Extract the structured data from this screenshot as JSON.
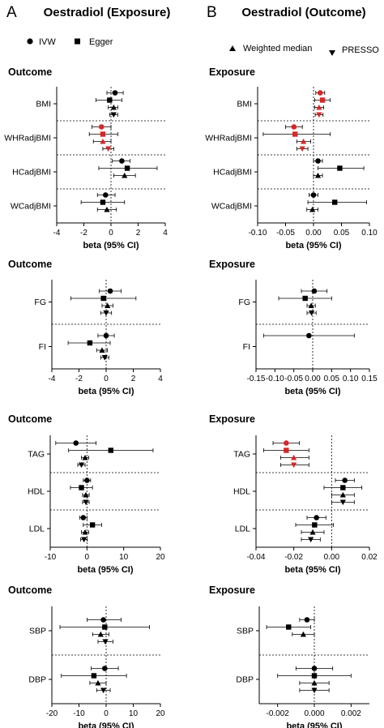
{
  "panels": [
    {
      "letter": "A",
      "title": "Oestradiol (Exposure)"
    },
    {
      "letter": "B",
      "title": "Oestradiol (Outcome)"
    }
  ],
  "legend": {
    "A": [
      {
        "marker": "circle",
        "label": "IVW"
      },
      {
        "marker": "square",
        "label": "Egger"
      }
    ],
    "B": [
      {
        "marker": "triangle-up",
        "label": "Weighted median"
      },
      {
        "marker": "triangle-down",
        "label": "PRESSO"
      }
    ]
  },
  "colors": {
    "normal": "#000000",
    "highlight": "#d62728"
  },
  "chart_data": [
    {
      "type": "scatter",
      "panel": "A",
      "heading": "Outcome",
      "xlabel": "beta (95% CI)",
      "xlim": [
        -4,
        4
      ],
      "xticks": [
        -4,
        -2,
        0,
        2,
        4
      ],
      "xtick_labels": [
        "-4",
        "-2",
        "0",
        "2",
        "4"
      ],
      "categories": [
        "BMI",
        "WHRadjBMI",
        "HCadjBMI",
        "WCadjBMI"
      ],
      "points": [
        {
          "category": "BMI",
          "method": "IVW",
          "beta": 0.3,
          "lo": -0.3,
          "hi": 0.9,
          "highlight": false
        },
        {
          "category": "BMI",
          "method": "Egger",
          "beta": -0.1,
          "lo": -1.1,
          "hi": 0.8,
          "highlight": false
        },
        {
          "category": "BMI",
          "method": "Weighted median",
          "beta": 0.2,
          "lo": -0.2,
          "hi": 0.5,
          "highlight": false
        },
        {
          "category": "BMI",
          "method": "PRESSO",
          "beta": 0.2,
          "lo": -0.1,
          "hi": 0.5,
          "highlight": false
        },
        {
          "category": "WHRadjBMI",
          "method": "IVW",
          "beta": -0.7,
          "lo": -1.4,
          "hi": 0.0,
          "highlight": true
        },
        {
          "category": "WHRadjBMI",
          "method": "Egger",
          "beta": -0.6,
          "lo": -1.6,
          "hi": 0.5,
          "highlight": true
        },
        {
          "category": "WHRadjBMI",
          "method": "Weighted median",
          "beta": -0.6,
          "lo": -1.3,
          "hi": 0.0,
          "highlight": true
        },
        {
          "category": "WHRadjBMI",
          "method": "PRESSO",
          "beta": -0.2,
          "lo": -0.6,
          "hi": 0.2,
          "highlight": true
        },
        {
          "category": "HCadjBMI",
          "method": "IVW",
          "beta": 0.8,
          "lo": 0.1,
          "hi": 1.4,
          "highlight": false
        },
        {
          "category": "HCadjBMI",
          "method": "Egger",
          "beta": 1.2,
          "lo": -0.9,
          "hi": 3.4,
          "highlight": false
        },
        {
          "category": "HCadjBMI",
          "method": "Weighted median",
          "beta": 1.0,
          "lo": 0.2,
          "hi": 1.8,
          "highlight": false
        },
        {
          "category": "WCadjBMI",
          "method": "IVW",
          "beta": -0.4,
          "lo": -1.0,
          "hi": 0.3,
          "highlight": false
        },
        {
          "category": "WCadjBMI",
          "method": "Egger",
          "beta": -0.6,
          "lo": -2.2,
          "hi": 1.0,
          "highlight": false
        },
        {
          "category": "WCadjBMI",
          "method": "Weighted median",
          "beta": -0.3,
          "lo": -1.0,
          "hi": 0.4,
          "highlight": false
        }
      ]
    },
    {
      "type": "scatter",
      "panel": "B",
      "heading": "Exposure",
      "xlabel": "beta (95% CI)",
      "xlim": [
        -0.1,
        0.1
      ],
      "xticks": [
        -0.1,
        -0.05,
        0,
        0.05,
        0.1
      ],
      "xtick_labels": [
        "-0.10",
        "-0.05",
        "0.00",
        "0.05",
        "0.10"
      ],
      "categories": [
        "BMI",
        "WHRadjBMI",
        "HCadjBMI",
        "WCadjBMI"
      ],
      "points": [
        {
          "category": "BMI",
          "method": "IVW",
          "beta": 0.012,
          "lo": 0.004,
          "hi": 0.02,
          "highlight": true
        },
        {
          "category": "BMI",
          "method": "Egger",
          "beta": 0.016,
          "lo": 0.002,
          "hi": 0.03,
          "highlight": true
        },
        {
          "category": "BMI",
          "method": "Weighted median",
          "beta": 0.01,
          "lo": 0.002,
          "hi": 0.018,
          "highlight": true
        },
        {
          "category": "BMI",
          "method": "PRESSO",
          "beta": 0.01,
          "lo": 0.003,
          "hi": 0.017,
          "highlight": true
        },
        {
          "category": "WHRadjBMI",
          "method": "IVW",
          "beta": -0.035,
          "lo": -0.05,
          "hi": -0.02,
          "highlight": true
        },
        {
          "category": "WHRadjBMI",
          "method": "Egger",
          "beta": -0.033,
          "lo": -0.09,
          "hi": 0.03,
          "highlight": true
        },
        {
          "category": "WHRadjBMI",
          "method": "Weighted median",
          "beta": -0.018,
          "lo": -0.03,
          "hi": -0.005,
          "highlight": true
        },
        {
          "category": "WHRadjBMI",
          "method": "PRESSO",
          "beta": -0.02,
          "lo": -0.03,
          "hi": -0.01,
          "highlight": true
        },
        {
          "category": "HCadjBMI",
          "method": "IVW",
          "beta": 0.008,
          "lo": 0.0,
          "hi": 0.016,
          "highlight": false
        },
        {
          "category": "HCadjBMI",
          "method": "Egger",
          "beta": 0.047,
          "lo": 0.008,
          "hi": 0.09,
          "highlight": false
        },
        {
          "category": "HCadjBMI",
          "method": "Weighted median",
          "beta": 0.008,
          "lo": 0.0,
          "hi": 0.016,
          "highlight": false
        },
        {
          "category": "WCadjBMI",
          "method": "IVW",
          "beta": 0.0,
          "lo": -0.008,
          "hi": 0.008,
          "highlight": false
        },
        {
          "category": "WCadjBMI",
          "method": "Egger",
          "beta": 0.038,
          "lo": -0.01,
          "hi": 0.095,
          "highlight": false
        },
        {
          "category": "WCadjBMI",
          "method": "Weighted median",
          "beta": -0.002,
          "lo": -0.012,
          "hi": 0.008,
          "highlight": false
        }
      ]
    },
    {
      "type": "scatter",
      "panel": "A",
      "heading": "Outcome",
      "xlabel": "beta (95% CI)",
      "xlim": [
        -4,
        4
      ],
      "xticks": [
        -4,
        -2,
        0,
        2,
        4
      ],
      "xtick_labels": [
        "-4",
        "-2",
        "0",
        "2",
        "4"
      ],
      "categories": [
        "FG",
        "FI"
      ],
      "points": [
        {
          "category": "FG",
          "method": "IVW",
          "beta": 0.3,
          "lo": -0.5,
          "hi": 1.1,
          "highlight": false
        },
        {
          "category": "FG",
          "method": "Egger",
          "beta": -0.2,
          "lo": -2.6,
          "hi": 2.2,
          "highlight": false
        },
        {
          "category": "FG",
          "method": "Weighted median",
          "beta": 0.1,
          "lo": -0.3,
          "hi": 0.5,
          "highlight": false
        },
        {
          "category": "FG",
          "method": "PRESSO",
          "beta": 0.0,
          "lo": -0.4,
          "hi": 0.4,
          "highlight": false
        },
        {
          "category": "FI",
          "method": "IVW",
          "beta": 0.0,
          "lo": -0.6,
          "hi": 0.6,
          "highlight": false
        },
        {
          "category": "FI",
          "method": "Egger",
          "beta": -1.2,
          "lo": -2.8,
          "hi": 0.3,
          "highlight": false
        },
        {
          "category": "FI",
          "method": "Weighted median",
          "beta": -0.3,
          "lo": -0.7,
          "hi": 0.1,
          "highlight": false
        },
        {
          "category": "FI",
          "method": "PRESSO",
          "beta": -0.1,
          "lo": -0.4,
          "hi": 0.2,
          "highlight": false
        }
      ]
    },
    {
      "type": "scatter",
      "panel": "B",
      "heading": "Exposure",
      "xlabel": "beta (95% CI)",
      "xlim": [
        -0.15,
        0.15
      ],
      "xticks": [
        -0.15,
        -0.1,
        -0.05,
        0,
        0.05,
        0.1,
        0.15
      ],
      "xtick_labels": [
        "-0.15",
        "-0.10",
        "-0.05",
        "0.00",
        "0.05",
        "0.10",
        "0.15"
      ],
      "categories": [
        "FG",
        "FI"
      ],
      "points": [
        {
          "category": "FG",
          "method": "IVW",
          "beta": 0.004,
          "lo": -0.03,
          "hi": 0.038,
          "highlight": false
        },
        {
          "category": "FG",
          "method": "Egger",
          "beta": -0.02,
          "lo": -0.09,
          "hi": 0.05,
          "highlight": false
        },
        {
          "category": "FG",
          "method": "Weighted median",
          "beta": -0.004,
          "lo": -0.015,
          "hi": 0.007,
          "highlight": false
        },
        {
          "category": "FG",
          "method": "PRESSO",
          "beta": -0.003,
          "lo": -0.015,
          "hi": 0.009,
          "highlight": false
        },
        {
          "category": "FI",
          "method": "IVW",
          "beta": -0.01,
          "lo": -0.13,
          "hi": 0.11,
          "highlight": false
        }
      ]
    },
    {
      "type": "scatter",
      "panel": "A",
      "heading": "Outcome",
      "xlabel": "beta (95% CI)",
      "xlim": [
        -10,
        20
      ],
      "xticks": [
        -10,
        0,
        10,
        20
      ],
      "xtick_labels": [
        "-10",
        "0",
        "10",
        "20"
      ],
      "categories": [
        "TAG",
        "HDL",
        "LDL"
      ],
      "points": [
        {
          "category": "TAG",
          "method": "IVW",
          "beta": -3.0,
          "lo": -8.5,
          "hi": 2.5,
          "highlight": false
        },
        {
          "category": "TAG",
          "method": "Egger",
          "beta": 6.5,
          "lo": -5.0,
          "hi": 18.0,
          "highlight": false
        },
        {
          "category": "TAG",
          "method": "Weighted median",
          "beta": -0.5,
          "lo": -1.5,
          "hi": 0.5,
          "highlight": false
        },
        {
          "category": "TAG",
          "method": "PRESSO",
          "beta": -1.5,
          "lo": -2.5,
          "hi": -0.5,
          "highlight": false
        },
        {
          "category": "HDL",
          "method": "IVW",
          "beta": 0.0,
          "lo": -1.0,
          "hi": 1.0,
          "highlight": false
        },
        {
          "category": "HDL",
          "method": "Egger",
          "beta": -1.5,
          "lo": -4.5,
          "hi": 1.5,
          "highlight": false
        },
        {
          "category": "HDL",
          "method": "Weighted median",
          "beta": -0.3,
          "lo": -1.2,
          "hi": 0.6,
          "highlight": false
        },
        {
          "category": "HDL",
          "method": "PRESSO",
          "beta": -0.3,
          "lo": -1.2,
          "hi": 0.6,
          "highlight": false
        },
        {
          "category": "LDL",
          "method": "IVW",
          "beta": -1.0,
          "lo": -2.0,
          "hi": 0.0,
          "highlight": false
        },
        {
          "category": "LDL",
          "method": "Egger",
          "beta": 1.5,
          "lo": -1.0,
          "hi": 4.0,
          "highlight": false
        },
        {
          "category": "LDL",
          "method": "Weighted median",
          "beta": -0.5,
          "lo": -1.5,
          "hi": 0.5,
          "highlight": false
        },
        {
          "category": "LDL",
          "method": "PRESSO",
          "beta": -0.8,
          "lo": -1.7,
          "hi": 0.1,
          "highlight": false
        }
      ]
    },
    {
      "type": "scatter",
      "panel": "B",
      "heading": "Exposure",
      "xlabel": "beta (95% CI)",
      "xlim": [
        -0.04,
        0.02
      ],
      "xticks": [
        -0.04,
        -0.02,
        0,
        0.02
      ],
      "xtick_labels": [
        "-0.04",
        "-0.02",
        "0.00",
        "0.02"
      ],
      "categories": [
        "TAG",
        "HDL",
        "LDL"
      ],
      "points": [
        {
          "category": "TAG",
          "method": "IVW",
          "beta": -0.024,
          "lo": -0.031,
          "hi": -0.017,
          "highlight": true
        },
        {
          "category": "TAG",
          "method": "Egger",
          "beta": -0.024,
          "lo": -0.036,
          "hi": -0.012,
          "highlight": true
        },
        {
          "category": "TAG",
          "method": "Weighted median",
          "beta": -0.02,
          "lo": -0.027,
          "hi": -0.012,
          "highlight": true
        },
        {
          "category": "TAG",
          "method": "PRESSO",
          "beta": -0.02,
          "lo": -0.027,
          "hi": -0.012,
          "highlight": true
        },
        {
          "category": "HDL",
          "method": "IVW",
          "beta": 0.007,
          "lo": 0.002,
          "hi": 0.012,
          "highlight": false
        },
        {
          "category": "HDL",
          "method": "Egger",
          "beta": 0.006,
          "lo": -0.004,
          "hi": 0.016,
          "highlight": false
        },
        {
          "category": "HDL",
          "method": "Weighted median",
          "beta": 0.006,
          "lo": 0.0,
          "hi": 0.012,
          "highlight": false
        },
        {
          "category": "HDL",
          "method": "PRESSO",
          "beta": 0.006,
          "lo": 0.0,
          "hi": 0.012,
          "highlight": false
        },
        {
          "category": "LDL",
          "method": "IVW",
          "beta": -0.008,
          "lo": -0.013,
          "hi": -0.003,
          "highlight": false
        },
        {
          "category": "LDL",
          "method": "Egger",
          "beta": -0.009,
          "lo": -0.019,
          "hi": 0.001,
          "highlight": false
        },
        {
          "category": "LDL",
          "method": "Weighted median",
          "beta": -0.01,
          "lo": -0.016,
          "hi": -0.004,
          "highlight": false
        },
        {
          "category": "LDL",
          "method": "PRESSO",
          "beta": -0.011,
          "lo": -0.016,
          "hi": -0.006,
          "highlight": false
        }
      ]
    },
    {
      "type": "scatter",
      "panel": "A",
      "heading": "Outcome",
      "xlabel": "beta (95% CI)",
      "xlim": [
        -20,
        20
      ],
      "xticks": [
        -20,
        -10,
        0,
        10,
        20
      ],
      "xtick_labels": [
        "-20",
        "-10",
        "0",
        "10",
        "20"
      ],
      "categories": [
        "SBP",
        "DBP"
      ],
      "points": [
        {
          "category": "SBP",
          "method": "IVW",
          "beta": -1.0,
          "lo": -7.0,
          "hi": 5.5,
          "highlight": false
        },
        {
          "category": "SBP",
          "method": "Egger",
          "beta": -0.5,
          "lo": -17.0,
          "hi": 16.0,
          "highlight": false
        },
        {
          "category": "SBP",
          "method": "Weighted median",
          "beta": -2.0,
          "lo": -5.0,
          "hi": 1.0,
          "highlight": false
        },
        {
          "category": "SBP",
          "method": "PRESSO",
          "beta": -0.3,
          "lo": -3.0,
          "hi": 2.5,
          "highlight": false
        },
        {
          "category": "DBP",
          "method": "IVW",
          "beta": -0.5,
          "lo": -5.5,
          "hi": 4.5,
          "highlight": false
        },
        {
          "category": "DBP",
          "method": "Egger",
          "beta": -4.5,
          "lo": -16.5,
          "hi": 7.5,
          "highlight": false
        },
        {
          "category": "DBP",
          "method": "Weighted median",
          "beta": -3.0,
          "lo": -6.0,
          "hi": 0.0,
          "highlight": false
        },
        {
          "category": "DBP",
          "method": "PRESSO",
          "beta": -1.0,
          "lo": -3.5,
          "hi": 1.5,
          "highlight": false
        }
      ]
    },
    {
      "type": "scatter",
      "panel": "B",
      "heading": "Exposure",
      "xlabel": "beta (95% CI)",
      "xlim": [
        -0.003,
        0.003
      ],
      "xticks": [
        -0.002,
        0,
        0.002
      ],
      "xtick_labels": [
        "-0.002",
        "0.000",
        "0.002"
      ],
      "categories": [
        "SBP",
        "DBP"
      ],
      "points": [
        {
          "category": "SBP",
          "method": "IVW",
          "beta": -0.0004,
          "lo": -0.0008,
          "hi": 0.0,
          "highlight": false
        },
        {
          "category": "SBP",
          "method": "Egger",
          "beta": -0.0014,
          "lo": -0.0026,
          "hi": -0.0002,
          "highlight": false
        },
        {
          "category": "SBP",
          "method": "Weighted median",
          "beta": -0.0006,
          "lo": -0.0012,
          "hi": 0.0,
          "highlight": false
        },
        {
          "category": "DBP",
          "method": "IVW",
          "beta": 0.0,
          "lo": -0.001,
          "hi": 0.001,
          "highlight": false
        },
        {
          "category": "DBP",
          "method": "Egger",
          "beta": 0.0,
          "lo": -0.002,
          "hi": 0.002,
          "highlight": false
        },
        {
          "category": "DBP",
          "method": "Weighted median",
          "beta": 0.0,
          "lo": -0.0008,
          "hi": 0.0008,
          "highlight": false
        },
        {
          "category": "DBP",
          "method": "PRESSO",
          "beta": 0.0,
          "lo": -0.0008,
          "hi": 0.0008,
          "highlight": false
        }
      ]
    }
  ]
}
